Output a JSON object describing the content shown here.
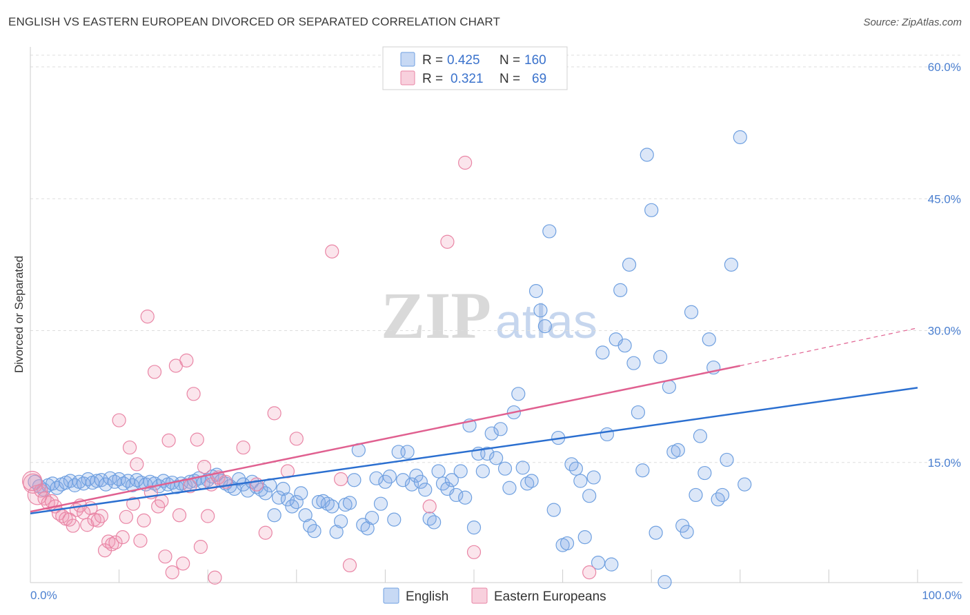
{
  "header": {
    "title": "ENGLISH VS EASTERN EUROPEAN DIVORCED OR SEPARATED CORRELATION CHART",
    "source": "Source: ZipAtlas.com"
  },
  "colors": {
    "english": "#6fa0e0",
    "english_fill": "rgba(130,170,230,0.28)",
    "english_line": "#2b6fd0",
    "eastern": "#e985a5",
    "eastern_fill": "rgba(240,150,180,0.25)",
    "eastern_line": "#e06090",
    "grid": "#dddddd",
    "axis_text": "#4a7fd0"
  },
  "watermark": {
    "zip": "ZIP",
    "atlas": "atlas"
  },
  "legend": {
    "rows": [
      {
        "r_label": "R =",
        "r_value": "0.425",
        "n_label": "N =",
        "n_value": "160"
      },
      {
        "r_label": "R =",
        "r_value": "0.321",
        "n_label": "N =",
        "n_value": "69"
      }
    ]
  },
  "bottom_legend": [
    "English",
    "Eastern Europeans"
  ],
  "chart_data": {
    "type": "scatter",
    "ylabel": "Divorced or Separated",
    "xlim": [
      0,
      100
    ],
    "ylim": [
      0,
      60
    ],
    "x_tick_labels": [
      "0.0%",
      "100.0%"
    ],
    "y_ticks": [
      15,
      30,
      45,
      60
    ],
    "y_tick_labels": [
      "15.0%",
      "30.0%",
      "45.0%",
      "60.0%"
    ],
    "grid": true,
    "legend_position": "top-center",
    "series": [
      {
        "name": "English",
        "r": 0.425,
        "n": 160,
        "trend": {
          "x": [
            0,
            100
          ],
          "y": [
            9.2,
            23.5
          ]
        },
        "points": [
          [
            0.5,
            12.8
          ],
          [
            1,
            12.3
          ],
          [
            1.5,
            11.9
          ],
          [
            2,
            12.4
          ],
          [
            2.5,
            12.6
          ],
          [
            3,
            12.1
          ],
          [
            3.5,
            12.5
          ],
          [
            4,
            12.7
          ],
          [
            4.5,
            12.9
          ],
          [
            5,
            12.4
          ],
          [
            5.5,
            12.8
          ],
          [
            6,
            12.6
          ],
          [
            6.5,
            13.1
          ],
          [
            7,
            12.7
          ],
          [
            7.5,
            12.9
          ],
          [
            8,
            13.0
          ],
          [
            8.5,
            12.5
          ],
          [
            9,
            13.2
          ],
          [
            9.5,
            12.8
          ],
          [
            10,
            13.1
          ],
          [
            10.5,
            12.6
          ],
          [
            11,
            12.9
          ],
          [
            11.5,
            12.4
          ],
          [
            12,
            13.0
          ],
          [
            12.5,
            12.7
          ],
          [
            13,
            12.5
          ],
          [
            13.5,
            12.8
          ],
          [
            14,
            12.6
          ],
          [
            14.5,
            12.3
          ],
          [
            15,
            12.9
          ],
          [
            15.5,
            12.5
          ],
          [
            16,
            12.7
          ],
          [
            16.5,
            12.2
          ],
          [
            17,
            12.6
          ],
          [
            17.5,
            12.4
          ],
          [
            18,
            12.8
          ],
          [
            18.5,
            12.9
          ],
          [
            19,
            13.2
          ],
          [
            19.5,
            12.7
          ],
          [
            20,
            13.0
          ],
          [
            20.5,
            13.4
          ],
          [
            21,
            13.6
          ],
          [
            21.5,
            12.9
          ],
          [
            22,
            12.6
          ],
          [
            22.5,
            12.3
          ],
          [
            23,
            12.0
          ],
          [
            23.5,
            13.1
          ],
          [
            24,
            12.5
          ],
          [
            24.5,
            11.8
          ],
          [
            25,
            12.8
          ],
          [
            25.5,
            12.2
          ],
          [
            26,
            11.9
          ],
          [
            26.5,
            11.5
          ],
          [
            27,
            12.4
          ],
          [
            27.5,
            9.0
          ],
          [
            28,
            11.0
          ],
          [
            28.5,
            12.0
          ],
          [
            29,
            10.8
          ],
          [
            29.5,
            10.0
          ],
          [
            30,
            10.5
          ],
          [
            30.5,
            11.5
          ],
          [
            31,
            9.0
          ],
          [
            31.5,
            7.8
          ],
          [
            32,
            7.2
          ],
          [
            32.5,
            10.5
          ],
          [
            33,
            10.6
          ],
          [
            33.5,
            10.3
          ],
          [
            34,
            10.0
          ],
          [
            34.5,
            7.1
          ],
          [
            35,
            8.3
          ],
          [
            35.5,
            10.2
          ],
          [
            36,
            10.4
          ],
          [
            36.5,
            13.0
          ],
          [
            37,
            16.4
          ],
          [
            37.5,
            7.9
          ],
          [
            38,
            7.5
          ],
          [
            38.5,
            8.7
          ],
          [
            39,
            13.2
          ],
          [
            39.5,
            10.3
          ],
          [
            40,
            12.8
          ],
          [
            40.5,
            13.4
          ],
          [
            41,
            8.5
          ],
          [
            41.5,
            16.2
          ],
          [
            42,
            13.0
          ],
          [
            42.5,
            16.2
          ],
          [
            43,
            12.5
          ],
          [
            43.5,
            13.5
          ],
          [
            44,
            12.8
          ],
          [
            44.5,
            11.9
          ],
          [
            45,
            8.6
          ],
          [
            45.5,
            8.2
          ],
          [
            46,
            14.0
          ],
          [
            46.5,
            12.6
          ],
          [
            47,
            12.0
          ],
          [
            47.5,
            13.0
          ],
          [
            48,
            11.3
          ],
          [
            48.5,
            14.0
          ],
          [
            49,
            11.0
          ],
          [
            49.5,
            19.2
          ],
          [
            50,
            7.6
          ],
          [
            50.5,
            16.0
          ],
          [
            51,
            14.0
          ],
          [
            51.5,
            16.0
          ],
          [
            52,
            18.3
          ],
          [
            52.5,
            15.5
          ],
          [
            53,
            18.8
          ],
          [
            53.5,
            14.3
          ],
          [
            54,
            12.1
          ],
          [
            54.5,
            20.7
          ],
          [
            55,
            22.8
          ],
          [
            55.5,
            14.4
          ],
          [
            56,
            12.6
          ],
          [
            56.5,
            12.9
          ],
          [
            57,
            34.5
          ],
          [
            57.5,
            32.3
          ],
          [
            58,
            30.5
          ],
          [
            58.5,
            41.3
          ],
          [
            59,
            9.6
          ],
          [
            59.5,
            17.8
          ],
          [
            60,
            5.6
          ],
          [
            60.5,
            5.8
          ],
          [
            61,
            14.8
          ],
          [
            61.5,
            14.3
          ],
          [
            62,
            12.9
          ],
          [
            62.5,
            6.5
          ],
          [
            63,
            11.2
          ],
          [
            63.5,
            13.3
          ],
          [
            64,
            3.6
          ],
          [
            64.5,
            27.5
          ],
          [
            65,
            18.2
          ],
          [
            65.5,
            3.4
          ],
          [
            66,
            29.0
          ],
          [
            66.5,
            34.6
          ],
          [
            67,
            28.3
          ],
          [
            67.5,
            37.5
          ],
          [
            68,
            26.3
          ],
          [
            68.5,
            20.7
          ],
          [
            69,
            14.1
          ],
          [
            69.5,
            50.0
          ],
          [
            70,
            43.7
          ],
          [
            70.5,
            7.0
          ],
          [
            71,
            27.0
          ],
          [
            71.5,
            1.4
          ],
          [
            72,
            23.6
          ],
          [
            72.5,
            16.2
          ],
          [
            73,
            16.4
          ],
          [
            73.5,
            7.8
          ],
          [
            74,
            7.1
          ],
          [
            74.5,
            32.1
          ],
          [
            75,
            11.3
          ],
          [
            75.5,
            18.0
          ],
          [
            76,
            13.8
          ],
          [
            76.5,
            29.0
          ],
          [
            77,
            25.8
          ],
          [
            77.5,
            10.8
          ],
          [
            78,
            11.3
          ],
          [
            78.5,
            15.3
          ],
          [
            79,
            37.5
          ],
          [
            80,
            52.0
          ],
          [
            80.5,
            12.5
          ]
        ]
      },
      {
        "name": "Eastern Europeans",
        "r": 0.321,
        "n": 69,
        "trend": {
          "x": [
            0,
            80
          ],
          "y": [
            9.4,
            26.0
          ]
        },
        "trend_dashed": {
          "x": [
            80,
            100
          ],
          "y": [
            26.0,
            30.3
          ]
        },
        "points": [
          [
            0.3,
            12.6
          ],
          [
            0.8,
            11.3
          ],
          [
            1.2,
            11.8
          ],
          [
            1.6,
            10.9
          ],
          [
            2,
            10.4
          ],
          [
            2.4,
            10.6
          ],
          [
            2.8,
            10.0
          ],
          [
            3.2,
            9.2
          ],
          [
            3.6,
            8.9
          ],
          [
            4,
            8.6
          ],
          [
            4.4,
            8.5
          ],
          [
            4.8,
            7.8
          ],
          [
            5.2,
            9.6
          ],
          [
            5.6,
            10.1
          ],
          [
            6,
            9.3
          ],
          [
            6.4,
            7.9
          ],
          [
            6.8,
            9.8
          ],
          [
            7.2,
            8.5
          ],
          [
            7.6,
            8.4
          ],
          [
            8,
            8.9
          ],
          [
            8.4,
            5.0
          ],
          [
            8.8,
            6.0
          ],
          [
            9.2,
            5.7
          ],
          [
            9.6,
            5.9
          ],
          [
            10,
            19.8
          ],
          [
            10.4,
            6.5
          ],
          [
            10.8,
            8.8
          ],
          [
            11.2,
            16.7
          ],
          [
            11.6,
            10.3
          ],
          [
            12,
            14.8
          ],
          [
            12.4,
            6.1
          ],
          [
            12.8,
            8.4
          ],
          [
            13.2,
            31.6
          ],
          [
            13.6,
            11.6
          ],
          [
            14,
            25.3
          ],
          [
            14.4,
            10.0
          ],
          [
            14.8,
            10.6
          ],
          [
            15.2,
            4.3
          ],
          [
            15.6,
            17.5
          ],
          [
            16,
            2.5
          ],
          [
            16.4,
            26.0
          ],
          [
            16.8,
            9.0
          ],
          [
            17.2,
            3.5
          ],
          [
            17.6,
            26.6
          ],
          [
            18,
            12.3
          ],
          [
            18.4,
            22.8
          ],
          [
            18.8,
            17.6
          ],
          [
            19.2,
            5.4
          ],
          [
            19.6,
            14.5
          ],
          [
            20,
            8.9
          ],
          [
            20.4,
            12.5
          ],
          [
            20.8,
            1.9
          ],
          [
            21.2,
            13.3
          ],
          [
            22,
            12.8
          ],
          [
            24,
            16.7
          ],
          [
            25.5,
            12.5
          ],
          [
            26.5,
            7.0
          ],
          [
            27.5,
            20.6
          ],
          [
            29,
            14.0
          ],
          [
            30,
            17.7
          ],
          [
            34,
            39.0
          ],
          [
            35,
            13.1
          ],
          [
            36,
            3.3
          ],
          [
            45,
            10.0
          ],
          [
            47,
            40.1
          ],
          [
            49,
            49.1
          ],
          [
            50,
            4.8
          ],
          [
            63,
            2.5
          ],
          [
            0.2,
            12.9
          ]
        ]
      }
    ]
  }
}
